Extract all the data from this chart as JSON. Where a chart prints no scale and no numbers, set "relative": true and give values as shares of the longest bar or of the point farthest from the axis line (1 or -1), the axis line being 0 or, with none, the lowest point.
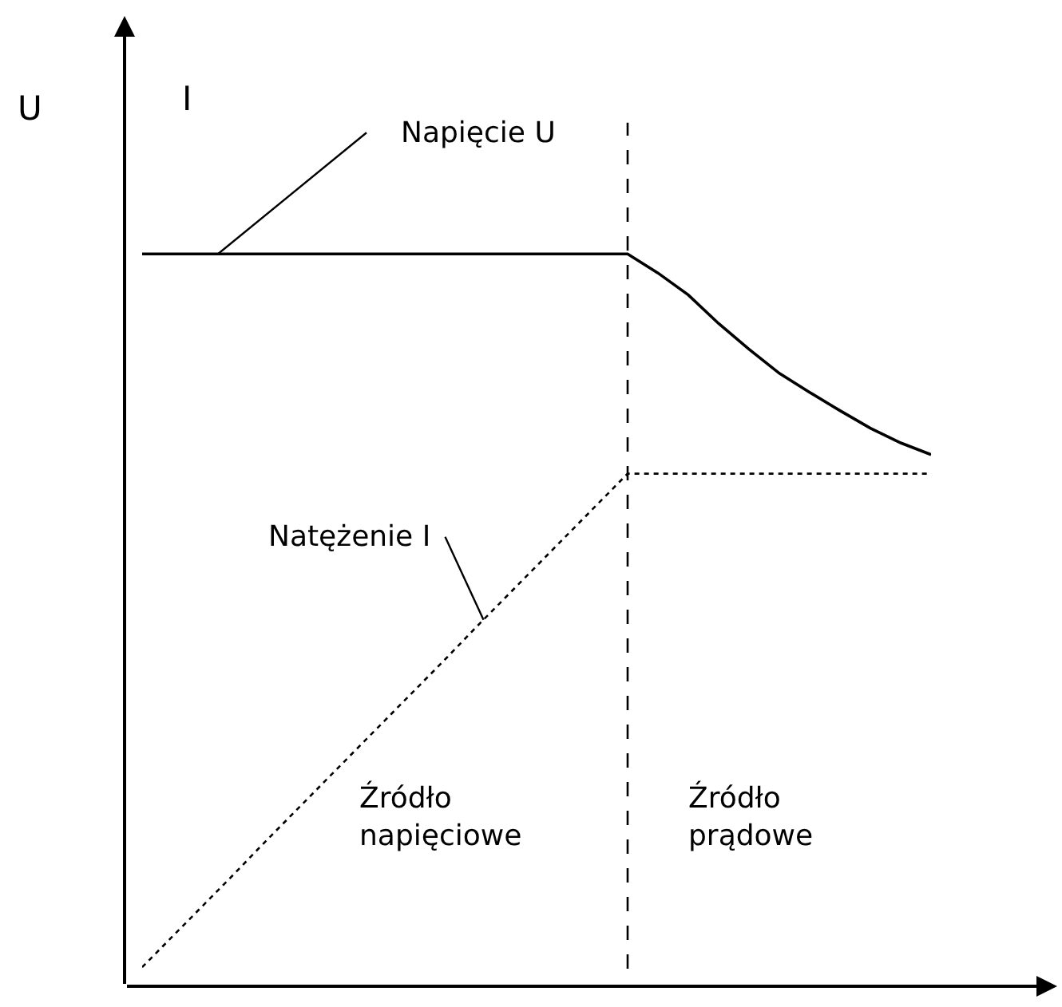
{
  "chart_data": {
    "type": "line",
    "relative": true,
    "ylabel": "U",
    "categories": [
      null,
      null,
      null,
      null,
      null,
      null,
      null,
      null,
      null,
      null,
      null,
      null,
      null,
      null,
      null,
      null,
      null,
      null,
      null,
      null,
      null,
      null,
      null,
      null,
      null,
      null,
      null
    ],
    "series": [
      {
        "name": "Napięcie U",
        "color": "#000000",
        "line_style": "solid",
        "values": [
          1,
          1,
          1,
          1,
          1,
          1,
          1,
          1,
          1,
          1,
          1,
          1,
          1,
          1,
          1,
          1,
          1,
          0.974,
          0.944,
          0.905,
          0.87,
          0.837,
          0.811,
          0.786,
          0.762,
          0.742,
          0.726
        ]
      },
      {
        "name": "Natężenie I",
        "color": "#000000",
        "line_style": "dotted",
        "values": [
          0.026,
          0.068,
          0.11,
          0.152,
          0.195,
          0.237,
          0.279,
          0.321,
          0.363,
          0.405,
          0.447,
          0.49,
          0.532,
          0.574,
          0.616,
          0.658,
          0.7,
          0.7,
          0.7,
          0.7,
          0.7,
          0.7,
          0.7,
          0.7,
          0.7,
          0.7,
          0.7
        ]
      }
    ],
    "annotations": [
      "I",
      "Źródło\nnapięciowe",
      "Źródło\nprądowe"
    ]
  }
}
